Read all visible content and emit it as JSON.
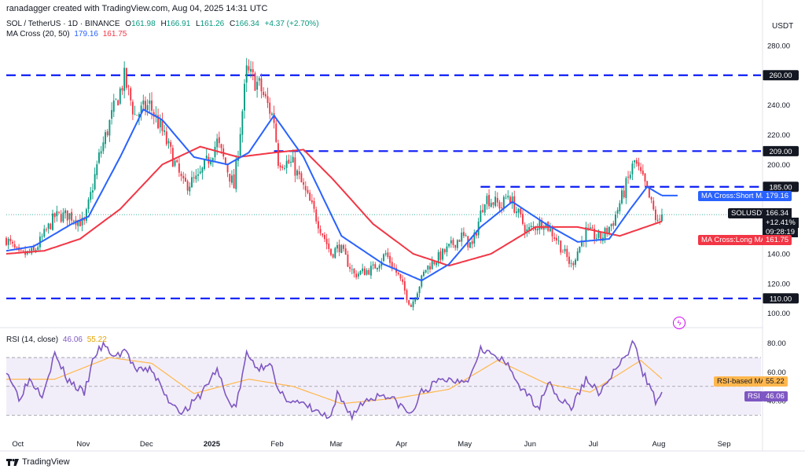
{
  "header": {
    "text": "ranadagger created with TradingView.com, Aug 04, 2025 14:31 UTC"
  },
  "symbol_row": {
    "symbol": "SOL / TetherUS · 1D · BINANCE",
    "open_label": "O",
    "open": "161.98",
    "high_label": "H",
    "high": "166.91",
    "low_label": "L",
    "low": "161.26",
    "close_label": "C",
    "close": "166.34",
    "change": "+4.37 (+2.70%)"
  },
  "ma_row": {
    "label": "MA Cross (20, 50)",
    "short": "179.16",
    "long": "161.75"
  },
  "rsi_row": {
    "label": "RSI (14, close)",
    "rsi": "46.06",
    "ma": "55.22"
  },
  "currency": "USDT",
  "footer": {
    "brand": "TradingView"
  },
  "tags": {
    "symbol": "SOLUSDT",
    "price": "166.34",
    "change": "+12.41%",
    "countdown": "09:28:19",
    "ma_short_label": "MA Cross:Short MA",
    "ma_short_value": "179.16",
    "ma_long_label": "MA Cross:Long MA",
    "ma_long_value": "161.75",
    "rsi_ma_label": "RSI-based MA",
    "rsi_ma_value": "55.22",
    "rsi_label": "RSI",
    "rsi_value": "46.06"
  },
  "colors": {
    "up": "#089981",
    "down": "#f23645",
    "short_ma": "#2962ff",
    "long_ma": "#f23645",
    "levels": "#0c1cf5",
    "rsi": "#7e57c2",
    "rsi_ma": "#ffb74d",
    "rsi_band": "#ede7f6"
  },
  "chart_data": {
    "type": "candlestick",
    "symbol": "SOL / TetherUS",
    "interval": "1D",
    "exchange": "BINANCE",
    "price_axis_ticks": [
      "280.00",
      "240.00",
      "220.00",
      "200.00",
      "160.00",
      "140.00",
      "120.00",
      "100.00"
    ],
    "rsi_axis_ticks": [
      "80.00",
      "60.00",
      "40.00"
    ],
    "x_tick_labels": [
      "Oct",
      "Nov",
      "Dec",
      "2025",
      "Feb",
      "Mar",
      "Apr",
      "May",
      "Jun",
      "Jul",
      "Aug",
      "Sep"
    ],
    "horizontal_levels": [
      {
        "value": 260,
        "label": "260.00"
      },
      {
        "value": 209,
        "label": "209.00"
      },
      {
        "value": 185,
        "label": "185.00"
      },
      {
        "value": 110,
        "label": "110.00"
      }
    ],
    "ylim": [
      93,
      300
    ],
    "rsi_ylim": [
      15,
      88
    ],
    "rsi_band": [
      30,
      70
    ],
    "rsi_mid": 50,
    "close_anchors": [
      {
        "date": "2024-09-27",
        "close": 150
      },
      {
        "date": "2024-10-03",
        "close": 139
      },
      {
        "date": "2024-10-10",
        "close": 141
      },
      {
        "date": "2024-10-20",
        "close": 165
      },
      {
        "date": "2024-10-27",
        "close": 166
      },
      {
        "date": "2024-11-03",
        "close": 160
      },
      {
        "date": "2024-11-10",
        "close": 205
      },
      {
        "date": "2024-11-17",
        "close": 237
      },
      {
        "date": "2024-11-22",
        "close": 258
      },
      {
        "date": "2024-11-27",
        "close": 233
      },
      {
        "date": "2024-12-04",
        "close": 240
      },
      {
        "date": "2024-12-10",
        "close": 222
      },
      {
        "date": "2024-12-20",
        "close": 186
      },
      {
        "date": "2024-12-27",
        "close": 190
      },
      {
        "date": "2025-01-05",
        "close": 215
      },
      {
        "date": "2025-01-13",
        "close": 185
      },
      {
        "date": "2025-01-19",
        "close": 262
      },
      {
        "date": "2025-01-25",
        "close": 253
      },
      {
        "date": "2025-02-01",
        "close": 230
      },
      {
        "date": "2025-02-03",
        "close": 203
      },
      {
        "date": "2025-02-10",
        "close": 200
      },
      {
        "date": "2025-02-20",
        "close": 168
      },
      {
        "date": "2025-02-28",
        "close": 140
      },
      {
        "date": "2025-03-04",
        "close": 145
      },
      {
        "date": "2025-03-11",
        "close": 126
      },
      {
        "date": "2025-03-20",
        "close": 130
      },
      {
        "date": "2025-03-26",
        "close": 140
      },
      {
        "date": "2025-04-01",
        "close": 125
      },
      {
        "date": "2025-04-07",
        "close": 105
      },
      {
        "date": "2025-04-14",
        "close": 130
      },
      {
        "date": "2025-04-22",
        "close": 140
      },
      {
        "date": "2025-05-01",
        "close": 152
      },
      {
        "date": "2025-05-06",
        "close": 145
      },
      {
        "date": "2025-05-12",
        "close": 178
      },
      {
        "date": "2025-05-20",
        "close": 172
      },
      {
        "date": "2025-05-23",
        "close": 180
      },
      {
        "date": "2025-06-01",
        "close": 155
      },
      {
        "date": "2025-06-09",
        "close": 162
      },
      {
        "date": "2025-06-15",
        "close": 150
      },
      {
        "date": "2025-06-22",
        "close": 132
      },
      {
        "date": "2025-06-29",
        "close": 155
      },
      {
        "date": "2025-07-06",
        "close": 150
      },
      {
        "date": "2025-07-12",
        "close": 162
      },
      {
        "date": "2025-07-18",
        "close": 186
      },
      {
        "date": "2025-07-22",
        "close": 202
      },
      {
        "date": "2025-07-27",
        "close": 186
      },
      {
        "date": "2025-08-02",
        "close": 160
      },
      {
        "date": "2025-08-04",
        "close": 166
      }
    ],
    "ma_short_anchors": [
      {
        "date": "2024-09-27",
        "value": 142
      },
      {
        "date": "2024-10-10",
        "value": 145
      },
      {
        "date": "2024-10-28",
        "value": 160
      },
      {
        "date": "2024-11-05",
        "value": 165
      },
      {
        "date": "2024-11-20",
        "value": 205
      },
      {
        "date": "2024-12-01",
        "value": 237
      },
      {
        "date": "2024-12-10",
        "value": 230
      },
      {
        "date": "2024-12-25",
        "value": 205
      },
      {
        "date": "2025-01-10",
        "value": 200
      },
      {
        "date": "2025-01-20",
        "value": 208
      },
      {
        "date": "2025-02-01",
        "value": 233
      },
      {
        "date": "2025-02-15",
        "value": 205
      },
      {
        "date": "2025-03-05",
        "value": 152
      },
      {
        "date": "2025-03-25",
        "value": 133
      },
      {
        "date": "2025-04-12",
        "value": 122
      },
      {
        "date": "2025-04-25",
        "value": 133
      },
      {
        "date": "2025-05-10",
        "value": 158
      },
      {
        "date": "2025-05-25",
        "value": 175
      },
      {
        "date": "2025-06-10",
        "value": 160
      },
      {
        "date": "2025-06-25",
        "value": 148
      },
      {
        "date": "2025-07-10",
        "value": 150
      },
      {
        "date": "2025-07-20",
        "value": 170
      },
      {
        "date": "2025-07-28",
        "value": 185
      },
      {
        "date": "2025-08-04",
        "value": 179.16
      }
    ],
    "ma_long_anchors": [
      {
        "date": "2024-09-27",
        "value": 140
      },
      {
        "date": "2024-10-15",
        "value": 142
      },
      {
        "date": "2024-11-01",
        "value": 150
      },
      {
        "date": "2024-11-20",
        "value": 170
      },
      {
        "date": "2024-12-10",
        "value": 200
      },
      {
        "date": "2024-12-28",
        "value": 212
      },
      {
        "date": "2025-01-15",
        "value": 205
      },
      {
        "date": "2025-02-01",
        "value": 208
      },
      {
        "date": "2025-02-15",
        "value": 210
      },
      {
        "date": "2025-03-01",
        "value": 190
      },
      {
        "date": "2025-03-20",
        "value": 160
      },
      {
        "date": "2025-04-08",
        "value": 140
      },
      {
        "date": "2025-04-25",
        "value": 132
      },
      {
        "date": "2025-05-15",
        "value": 140
      },
      {
        "date": "2025-06-05",
        "value": 158
      },
      {
        "date": "2025-06-25",
        "value": 158
      },
      {
        "date": "2025-07-15",
        "value": 152
      },
      {
        "date": "2025-08-04",
        "value": 161.75
      }
    ],
    "rsi_anchors": [
      {
        "date": "2024-09-27",
        "value": 62
      },
      {
        "date": "2024-10-03",
        "value": 42
      },
      {
        "date": "2024-10-08",
        "value": 55
      },
      {
        "date": "2024-10-14",
        "value": 45
      },
      {
        "date": "2024-10-20",
        "value": 72
      },
      {
        "date": "2024-10-26",
        "value": 55
      },
      {
        "date": "2024-11-03",
        "value": 45
      },
      {
        "date": "2024-11-08",
        "value": 72
      },
      {
        "date": "2024-11-12",
        "value": 78
      },
      {
        "date": "2024-11-18",
        "value": 70
      },
      {
        "date": "2024-11-22",
        "value": 76
      },
      {
        "date": "2024-11-28",
        "value": 60
      },
      {
        "date": "2024-12-05",
        "value": 62
      },
      {
        "date": "2024-12-12",
        "value": 42
      },
      {
        "date": "2024-12-20",
        "value": 32
      },
      {
        "date": "2024-12-27",
        "value": 42
      },
      {
        "date": "2025-01-05",
        "value": 62
      },
      {
        "date": "2025-01-10",
        "value": 40
      },
      {
        "date": "2025-01-14",
        "value": 36
      },
      {
        "date": "2025-01-19",
        "value": 72
      },
      {
        "date": "2025-01-25",
        "value": 62
      },
      {
        "date": "2025-01-30",
        "value": 68
      },
      {
        "date": "2025-02-03",
        "value": 45
      },
      {
        "date": "2025-02-10",
        "value": 40
      },
      {
        "date": "2025-02-18",
        "value": 35
      },
      {
        "date": "2025-02-28",
        "value": 27
      },
      {
        "date": "2025-03-03",
        "value": 44
      },
      {
        "date": "2025-03-10",
        "value": 30
      },
      {
        "date": "2025-03-16",
        "value": 40
      },
      {
        "date": "2025-03-25",
        "value": 45
      },
      {
        "date": "2025-04-01",
        "value": 38
      },
      {
        "date": "2025-04-07",
        "value": 30
      },
      {
        "date": "2025-04-12",
        "value": 46
      },
      {
        "date": "2025-04-22",
        "value": 55
      },
      {
        "date": "2025-04-28",
        "value": 54
      },
      {
        "date": "2025-05-05",
        "value": 56
      },
      {
        "date": "2025-05-10",
        "value": 78
      },
      {
        "date": "2025-05-15",
        "value": 72
      },
      {
        "date": "2025-05-22",
        "value": 66
      },
      {
        "date": "2025-05-31",
        "value": 45
      },
      {
        "date": "2025-06-07",
        "value": 36
      },
      {
        "date": "2025-06-11",
        "value": 55
      },
      {
        "date": "2025-06-16",
        "value": 42
      },
      {
        "date": "2025-06-22",
        "value": 35
      },
      {
        "date": "2025-06-29",
        "value": 55
      },
      {
        "date": "2025-07-06",
        "value": 45
      },
      {
        "date": "2025-07-12",
        "value": 60
      },
      {
        "date": "2025-07-18",
        "value": 70
      },
      {
        "date": "2025-07-22",
        "value": 82
      },
      {
        "date": "2025-07-26",
        "value": 60
      },
      {
        "date": "2025-08-01",
        "value": 40
      },
      {
        "date": "2025-08-04",
        "value": 46.06
      }
    ],
    "rsi_ma_anchors": [
      {
        "date": "2024-09-27",
        "value": 55
      },
      {
        "date": "2024-10-20",
        "value": 55
      },
      {
        "date": "2024-11-15",
        "value": 70
      },
      {
        "date": "2024-12-05",
        "value": 66
      },
      {
        "date": "2024-12-25",
        "value": 45
      },
      {
        "date": "2025-01-20",
        "value": 55
      },
      {
        "date": "2025-02-10",
        "value": 50
      },
      {
        "date": "2025-03-05",
        "value": 38
      },
      {
        "date": "2025-04-01",
        "value": 42
      },
      {
        "date": "2025-04-25",
        "value": 48
      },
      {
        "date": "2025-05-18",
        "value": 68
      },
      {
        "date": "2025-06-10",
        "value": 52
      },
      {
        "date": "2025-07-01",
        "value": 46
      },
      {
        "date": "2025-07-25",
        "value": 68
      },
      {
        "date": "2025-08-04",
        "value": 55.22
      }
    ]
  }
}
